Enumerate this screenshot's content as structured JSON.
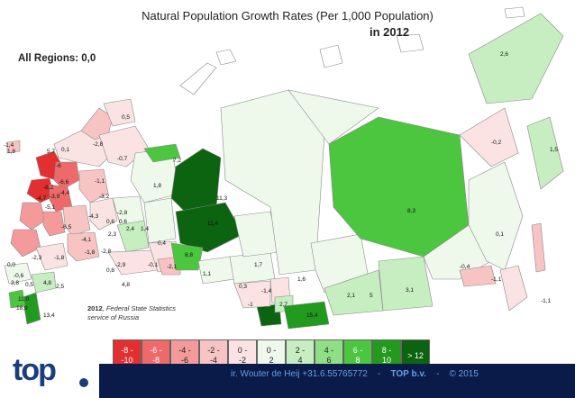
{
  "title": "Natural Population Growth Rates (Per 1,000 Population)",
  "year_label": "in 2012",
  "all_regions_label": "All Regions: 0,0",
  "source_year": "2012",
  "source_text_1": ", Federal State Statistics",
  "source_text_2": "service of Russia",
  "legend": [
    {
      "top": "-8 -",
      "bottom": "-10",
      "color": "#e23030"
    },
    {
      "top": "-6 -",
      "bottom": "-8",
      "color": "#ee6a6a"
    },
    {
      "top": "-4 -",
      "bottom": "-6",
      "color": "#f59a9a"
    },
    {
      "top": "-2 -",
      "bottom": "-4",
      "color": "#f8c3c3"
    },
    {
      "top": "0 -",
      "bottom": "-2",
      "color": "#fbe3e3"
    },
    {
      "top": "0 -",
      "bottom": "2",
      "color": "#eef9ec"
    },
    {
      "top": "2 -",
      "bottom": "4",
      "color": "#c6eec0"
    },
    {
      "top": "4 -",
      "bottom": "6",
      "color": "#8fdf86"
    },
    {
      "top": "6 -",
      "bottom": "8",
      "color": "#4cc63e"
    },
    {
      "top": "8 -",
      "bottom": "10",
      "color": "#229a1e"
    },
    {
      "top": "> 12",
      "bottom": "",
      "color": "#0c6410"
    }
  ],
  "footer": {
    "author": "ir. Wouter de Heij +31.6.55765772",
    "sep1": "-",
    "brand": "TOP b.v.",
    "sep2": "-",
    "copyright": "© 2015"
  },
  "logo_text": "top",
  "region_values": [
    "2,6",
    "0,5",
    "-2,8",
    "-0,7",
    "7,2",
    "1,8",
    "11,3",
    "11,4",
    "8,3",
    "-0,2",
    "1,5",
    "0,1",
    "-0,4",
    "-1,1",
    "-1,1",
    "3,1",
    "5",
    "2,1",
    "1,6",
    "1,7",
    "0,3",
    "-1,4",
    "-1",
    "2,7",
    "15,4",
    "1,1",
    "-2,1",
    "-0,1",
    "8,8",
    "0,4",
    "0,6",
    "1,4",
    "0,8",
    "-1,8",
    "-2,3",
    "0,0",
    "-0,6",
    "3,8",
    "0,5",
    "4,8",
    "2,5",
    "11,0",
    "18,9",
    "13,4",
    "-6",
    "-6,6",
    "-8,2",
    "5,7",
    "0,1",
    "-1,1",
    "-3,2",
    "-4,7",
    "-3,9",
    "-4,4",
    "-5,1",
    "-6,5",
    "-4,3",
    "-2,8",
    "0,6",
    "2,4",
    "2,3",
    "-4,1",
    "-2,8",
    "-2,9",
    "-1,8",
    "-1,4",
    "1,8",
    "4,8",
    "-4,8"
  ]
}
